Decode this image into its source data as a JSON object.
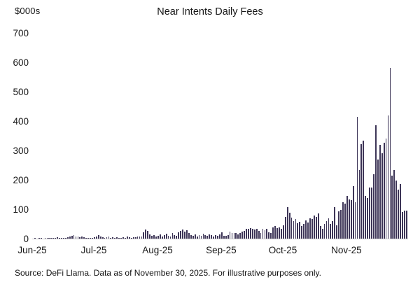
{
  "chart": {
    "unit_label": "$000s",
    "source_note": "Source: DeFi Llama. Data as of November 30, 2025. For illustrative purposes only.",
    "bar_color": "#3d3557",
    "axis_line_color": "#cfcfcf",
    "text_color": "#161616",
    "background_color": "#ffffff"
  },
  "chart_data": {
    "type": "bar",
    "title": "Near Intents Daily Fees",
    "ylabel": "$000s",
    "xlabel": "",
    "ylim": [
      0,
      700
    ],
    "yticks": [
      700,
      600,
      500,
      400,
      300,
      200,
      100,
      0
    ],
    "grid": false,
    "legend": false,
    "x_unit": "day",
    "months": [
      {
        "label": "Jun-25",
        "values": [
          0,
          1,
          0,
          1,
          1,
          0,
          2,
          1,
          2,
          1,
          3,
          2,
          4,
          3,
          2,
          3,
          2,
          4,
          6,
          9,
          12,
          8,
          6,
          5,
          7,
          4,
          3,
          2,
          3,
          2
        ]
      },
      {
        "label": "Jul-25",
        "values": [
          4,
          8,
          12,
          6,
          5,
          3,
          4,
          6,
          3,
          4,
          3,
          5,
          2,
          3,
          4,
          3,
          6,
          4,
          3,
          5,
          4,
          6,
          8,
          6,
          22,
          30,
          26,
          14,
          10,
          12,
          8
        ]
      },
      {
        "label": "Aug-25",
        "values": [
          10,
          14,
          8,
          12,
          16,
          10,
          8,
          18,
          12,
          10,
          22,
          26,
          30,
          24,
          28,
          20,
          12,
          10,
          14,
          8,
          12,
          10,
          16,
          12,
          10,
          14,
          12,
          8,
          12,
          10,
          14
        ]
      },
      {
        "label": "Sep-25",
        "values": [
          22,
          10,
          9,
          12,
          25,
          20,
          18,
          20,
          14,
          20,
          25,
          26,
          33,
          34,
          36,
          33,
          30,
          34,
          26,
          18,
          33,
          28,
          34,
          22,
          20,
          38,
          42,
          36,
          38,
          33
        ]
      },
      {
        "label": "Oct-25",
        "values": [
          46,
          74,
          106,
          88,
          72,
          60,
          66,
          52,
          58,
          44,
          50,
          62,
          55,
          70,
          66,
          78,
          73,
          85,
          42,
          34,
          50,
          60,
          70,
          50,
          60,
          106,
          46,
          94,
          98,
          124,
          118
        ]
      },
      {
        "label": "Nov-25",
        "values": [
          145,
          134,
          130,
          178,
          124,
          414,
          234,
          322,
          334,
          146,
          138,
          174,
          174,
          218,
          386,
          270,
          318,
          290,
          326,
          340,
          418,
          580,
          214,
          234,
          198,
          166,
          186,
          90,
          95,
          96
        ]
      }
    ]
  }
}
